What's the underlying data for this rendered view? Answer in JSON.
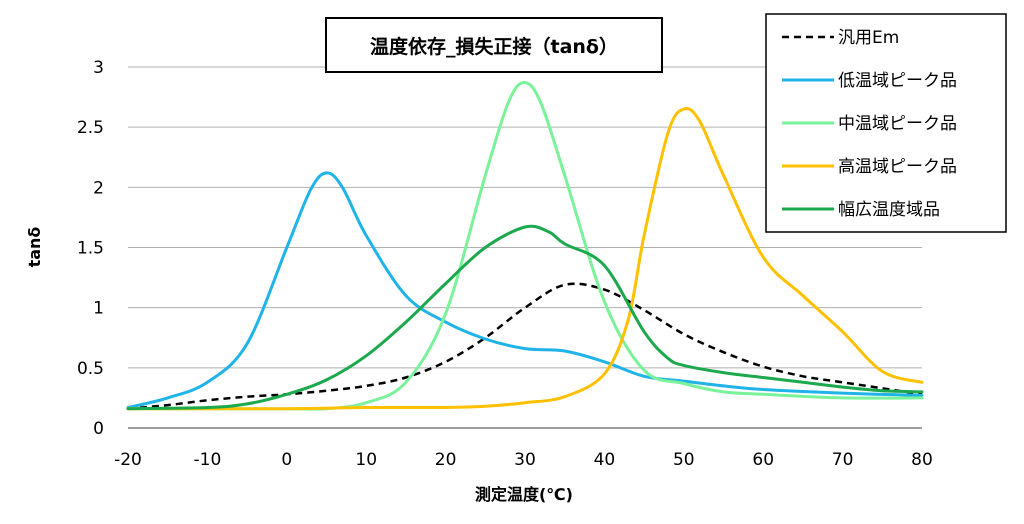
{
  "chart_data": {
    "type": "line",
    "title": "温度依存_損失正接（tanδ）",
    "xlabel": "測定温度(℃)",
    "ylabel": "tanδ",
    "xlim": [
      -20,
      80
    ],
    "ylim": [
      0,
      3
    ],
    "xticks": [
      -20,
      -10,
      0,
      10,
      20,
      30,
      40,
      50,
      60,
      70,
      80
    ],
    "yticks": [
      0,
      0.5,
      1,
      1.5,
      2,
      2.5,
      3
    ],
    "grid": "horizontal",
    "legend_position": "top-right",
    "series": [
      {
        "name": "汎用Em",
        "color": "#000000",
        "style": "dashed",
        "points": [
          [
            -20,
            0.16
          ],
          [
            -15,
            0.19
          ],
          [
            -10,
            0.23
          ],
          [
            -5,
            0.26
          ],
          [
            0,
            0.28
          ],
          [
            5,
            0.31
          ],
          [
            10,
            0.35
          ],
          [
            15,
            0.42
          ],
          [
            20,
            0.55
          ],
          [
            25,
            0.75
          ],
          [
            30,
            1.0
          ],
          [
            35,
            1.19
          ],
          [
            40,
            1.15
          ],
          [
            45,
            0.98
          ],
          [
            50,
            0.78
          ],
          [
            55,
            0.63
          ],
          [
            60,
            0.51
          ],
          [
            65,
            0.43
          ],
          [
            70,
            0.38
          ],
          [
            75,
            0.33
          ],
          [
            80,
            0.28
          ]
        ]
      },
      {
        "name": "低温域ピーク品",
        "color": "#1fb3e8",
        "style": "solid",
        "points": [
          [
            -20,
            0.17
          ],
          [
            -15,
            0.25
          ],
          [
            -10,
            0.38
          ],
          [
            -5,
            0.7
          ],
          [
            0,
            1.5
          ],
          [
            3,
            1.98
          ],
          [
            5,
            2.12
          ],
          [
            7,
            2.0
          ],
          [
            10,
            1.6
          ],
          [
            15,
            1.1
          ],
          [
            20,
            0.88
          ],
          [
            25,
            0.74
          ],
          [
            30,
            0.66
          ],
          [
            35,
            0.64
          ],
          [
            40,
            0.55
          ],
          [
            45,
            0.43
          ],
          [
            50,
            0.39
          ],
          [
            55,
            0.35
          ],
          [
            60,
            0.32
          ],
          [
            70,
            0.29
          ],
          [
            80,
            0.27
          ]
        ]
      },
      {
        "name": "中温域ピーク品",
        "color": "#7af29a",
        "style": "solid",
        "points": [
          [
            -20,
            0.16
          ],
          [
            -10,
            0.16
          ],
          [
            0,
            0.16
          ],
          [
            5,
            0.16
          ],
          [
            10,
            0.21
          ],
          [
            15,
            0.38
          ],
          [
            20,
            0.95
          ],
          [
            25,
            2.1
          ],
          [
            28,
            2.72
          ],
          [
            30,
            2.87
          ],
          [
            32,
            2.7
          ],
          [
            35,
            2.1
          ],
          [
            40,
            1.05
          ],
          [
            45,
            0.48
          ],
          [
            50,
            0.37
          ],
          [
            55,
            0.3
          ],
          [
            60,
            0.28
          ],
          [
            70,
            0.25
          ],
          [
            80,
            0.25
          ]
        ]
      },
      {
        "name": "高温域ピーク品",
        "color": "#ffc000",
        "style": "solid",
        "points": [
          [
            -20,
            0.16
          ],
          [
            0,
            0.16
          ],
          [
            10,
            0.17
          ],
          [
            20,
            0.17
          ],
          [
            25,
            0.18
          ],
          [
            30,
            0.21
          ],
          [
            35,
            0.26
          ],
          [
            40,
            0.45
          ],
          [
            43,
            0.9
          ],
          [
            45,
            1.6
          ],
          [
            48,
            2.45
          ],
          [
            50,
            2.65
          ],
          [
            52,
            2.55
          ],
          [
            55,
            2.1
          ],
          [
            60,
            1.42
          ],
          [
            65,
            1.1
          ],
          [
            70,
            0.8
          ],
          [
            75,
            0.47
          ],
          [
            80,
            0.38
          ]
        ]
      },
      {
        "name": "幅広温度域品",
        "color": "#1ca84c",
        "style": "solid",
        "points": [
          [
            -20,
            0.16
          ],
          [
            -10,
            0.17
          ],
          [
            -5,
            0.2
          ],
          [
            0,
            0.28
          ],
          [
            5,
            0.4
          ],
          [
            10,
            0.6
          ],
          [
            15,
            0.88
          ],
          [
            20,
            1.2
          ],
          [
            25,
            1.5
          ],
          [
            30,
            1.67
          ],
          [
            33,
            1.63
          ],
          [
            35,
            1.53
          ],
          [
            40,
            1.35
          ],
          [
            45,
            0.8
          ],
          [
            48,
            0.58
          ],
          [
            50,
            0.52
          ],
          [
            55,
            0.46
          ],
          [
            60,
            0.42
          ],
          [
            65,
            0.38
          ],
          [
            70,
            0.34
          ],
          [
            75,
            0.31
          ],
          [
            80,
            0.3
          ]
        ]
      }
    ]
  }
}
